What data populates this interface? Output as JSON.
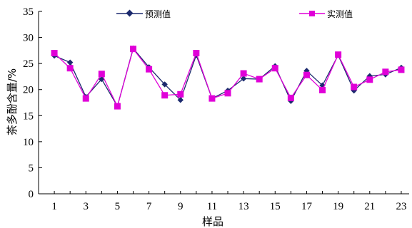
{
  "chart_data": {
    "type": "line",
    "xlabel": "样品",
    "ylabel": "茶多酚含量/%",
    "xlim": [
      0,
      23.5
    ],
    "ylim": [
      0,
      35
    ],
    "x_ticks": [
      1,
      3,
      5,
      7,
      9,
      11,
      13,
      15,
      17,
      19,
      21,
      23
    ],
    "y_ticks": [
      0,
      5,
      10,
      15,
      20,
      25,
      30,
      35
    ],
    "grid": false,
    "legend_position": "top",
    "x": [
      1,
      2,
      3,
      4,
      5,
      6,
      7,
      8,
      9,
      10,
      11,
      12,
      13,
      14,
      15,
      16,
      17,
      18,
      19,
      20,
      21,
      22,
      23
    ],
    "series": [
      {
        "name": "预测值",
        "color": "#1c2a6e",
        "marker": "diamond",
        "values": [
          26.5,
          25.2,
          18.6,
          22.0,
          16.8,
          27.9,
          24.3,
          21.0,
          18.0,
          26.6,
          18.3,
          19.8,
          22.1,
          22.0,
          24.5,
          17.8,
          23.6,
          20.8,
          26.6,
          19.8,
          22.6,
          22.9,
          24.2
        ]
      },
      {
        "name": "实测值",
        "color": "#e000d8",
        "marker": "square",
        "values": [
          27.0,
          24.1,
          18.3,
          23.0,
          16.8,
          27.8,
          23.9,
          18.9,
          19.1,
          27.0,
          18.3,
          19.3,
          23.1,
          22.0,
          24.1,
          18.4,
          22.8,
          19.9,
          26.7,
          20.5,
          21.9,
          23.4,
          23.8
        ]
      }
    ]
  }
}
